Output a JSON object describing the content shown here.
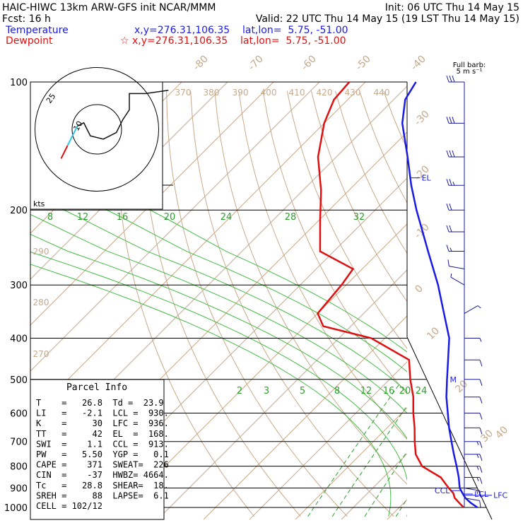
{
  "header": {
    "line1_left": "HAIC-HIWC 13km ARW-GFS init   NCAR/MMM",
    "line1_right": "Init: 06 UTC Thu 14 May 15",
    "line2_left": "Fcst:   16 h",
    "line2_right": "Valid: 22 UTC Thu 14 May 15 (19 LST Thu 14 May 15)",
    "temp_label": "Temperature",
    "temp_loc": "x,y=276.31,106.35    lat,lon=  5.75, -51.00",
    "dew_label": "Dewpoint",
    "dew_loc": "☆ x,y=276.31,106.35    lat,lon=  5.75, -51.00",
    "barb_label_1": "Full barb:",
    "barb_label_2": "5 m s⁻¹"
  },
  "colors": {
    "temperature": "#1a1ae6",
    "dewpoint": "#e01010",
    "isotherm": "#c8a98a",
    "mixing_ratio": "#2ca02c",
    "moist_adiabat": "#44bb44",
    "barb": "#1a1a99",
    "hodo_wind": "#111111",
    "hodo_low": "#33c4e8"
  },
  "chart_data": {
    "type": "skew-t",
    "pressure_ticks": [
      "100",
      "200",
      "300",
      "400",
      "500",
      "600",
      "700",
      "800",
      "900",
      "1000"
    ],
    "isotherm_labels": [
      "-80",
      "-70",
      "-60",
      "-50",
      "-40",
      "-30",
      "-20",
      "-10",
      "0",
      "10",
      "20",
      "30",
      "40"
    ],
    "theta_labels": [
      "370",
      "380",
      "390",
      "400",
      "410",
      "420",
      "430",
      "440",
      "290",
      "280",
      "270"
    ],
    "mixing_ratio_labels": [
      "8",
      "12",
      "16",
      "20",
      "24",
      "28",
      "32",
      "2",
      "3",
      "5",
      "8",
      "12",
      "16",
      "20",
      "24"
    ],
    "temperature": [
      {
        "p": 1000,
        "t": 27.0
      },
      {
        "p": 975,
        "t": 24.5
      },
      {
        "p": 950,
        "t": 22.3
      },
      {
        "p": 925,
        "t": 20.6
      },
      {
        "p": 900,
        "t": 18.9
      },
      {
        "p": 850,
        "t": 16.4
      },
      {
        "p": 800,
        "t": 13.5
      },
      {
        "p": 750,
        "t": 10.3
      },
      {
        "p": 700,
        "t": 7.0
      },
      {
        "p": 650,
        "t": 3.5
      },
      {
        "p": 600,
        "t": 0.0
      },
      {
        "p": 550,
        "t": -3.8
      },
      {
        "p": 500,
        "t": -7.5
      },
      {
        "p": 450,
        "t": -11.5
      },
      {
        "p": 400,
        "t": -16.0
      },
      {
        "p": 350,
        "t": -22.5
      },
      {
        "p": 300,
        "t": -30.0
      },
      {
        "p": 250,
        "t": -39.5
      },
      {
        "p": 200,
        "t": -51.0
      },
      {
        "p": 175,
        "t": -57.5
      },
      {
        "p": 150,
        "t": -64.5
      },
      {
        "p": 125,
        "t": -73.0
      },
      {
        "p": 110,
        "t": -77.5
      },
      {
        "p": 100,
        "t": -79.0
      }
    ],
    "dewpoint": [
      {
        "p": 1000,
        "t": 24.0
      },
      {
        "p": 975,
        "t": 22.0
      },
      {
        "p": 950,
        "t": 20.0
      },
      {
        "p": 925,
        "t": 18.6
      },
      {
        "p": 900,
        "t": 16.5
      },
      {
        "p": 850,
        "t": 12.5
      },
      {
        "p": 800,
        "t": 6.0
      },
      {
        "p": 750,
        "t": 2.0
      },
      {
        "p": 700,
        "t": -1.0
      },
      {
        "p": 650,
        "t": -4.0
      },
      {
        "p": 600,
        "t": -7.5
      },
      {
        "p": 550,
        "t": -11.0
      },
      {
        "p": 500,
        "t": -15.5
      },
      {
        "p": 450,
        "t": -20.0
      },
      {
        "p": 400,
        "t": -33.0
      },
      {
        "p": 375,
        "t": -46.0
      },
      {
        "p": 350,
        "t": -50.0
      },
      {
        "p": 300,
        "t": -51.0
      },
      {
        "p": 275,
        "t": -52.0
      },
      {
        "p": 250,
        "t": -63.0
      },
      {
        "p": 210,
        "t": -70.0
      },
      {
        "p": 180,
        "t": -76.0
      },
      {
        "p": 150,
        "t": -84.0
      },
      {
        "p": 125,
        "t": -90.0
      },
      {
        "p": 110,
        "t": -93.0
      },
      {
        "p": 100,
        "t": -93.5
      }
    ],
    "markers": [
      {
        "label": "EL",
        "p": 168
      },
      {
        "label": "LCL",
        "p": 930
      },
      {
        "label": "LFC",
        "p": 936
      },
      {
        "label": "CCL",
        "p": 913
      },
      {
        "label": "M",
        "p": 500
      }
    ],
    "parcel_info": {
      "title": "Parcel Info",
      "rows": [
        "T    =   26.8  Td =  23.9",
        "LI   =   -2.1  LCL =  930.",
        "K    =     30  LFC =  936.",
        "TT   =     42  EL  =  168.",
        "SWI  =    1.1  CCL =  913.",
        "PW   =   5.50  YGP =   0.1",
        "CAPE =    371  SWEAT=  226",
        "CIN  =    -37  HWBZ= 4664.",
        "Tc   =   28.8  SHEAR=  18.",
        "SREH =     88  LAPSE=  6.1",
        "CELL = 102/12"
      ]
    },
    "hodograph": {
      "units": "kts",
      "ring_labels": [
        "10",
        "25"
      ],
      "points": [
        [
          -11,
          -9
        ],
        [
          -10,
          -7
        ],
        [
          -9,
          -5
        ],
        [
          -8,
          -3
        ],
        [
          -7,
          -1
        ],
        [
          -6,
          1
        ],
        [
          -4,
          2
        ],
        [
          -3,
          0
        ],
        [
          -2,
          -2
        ],
        [
          2,
          -3
        ],
        [
          6,
          -1
        ],
        [
          8,
          3
        ],
        [
          10,
          6
        ],
        [
          10,
          11
        ],
        [
          15,
          11
        ],
        [
          22,
          12
        ]
      ]
    },
    "wind_barbs": [
      {
        "p": 100,
        "speed": 30,
        "dir": 270
      },
      {
        "p": 125,
        "speed": 30,
        "dir": 270
      },
      {
        "p": 150,
        "speed": 30,
        "dir": 270
      },
      {
        "p": 175,
        "speed": 25,
        "dir": 270
      },
      {
        "p": 200,
        "speed": 20,
        "dir": 270
      },
      {
        "p": 225,
        "speed": 20,
        "dir": 270
      },
      {
        "p": 250,
        "speed": 15,
        "dir": 270
      },
      {
        "p": 275,
        "speed": 10,
        "dir": 280
      },
      {
        "p": 300,
        "speed": 5,
        "dir": 300
      },
      {
        "p": 350,
        "speed": 5,
        "dir": 60
      },
      {
        "p": 400,
        "speed": 5,
        "dir": 90
      },
      {
        "p": 450,
        "speed": 10,
        "dir": 90
      },
      {
        "p": 500,
        "speed": 10,
        "dir": 90
      },
      {
        "p": 550,
        "speed": 10,
        "dir": 90
      },
      {
        "p": 600,
        "speed": 10,
        "dir": 90
      },
      {
        "p": 650,
        "speed": 10,
        "dir": 90
      },
      {
        "p": 700,
        "speed": 15,
        "dir": 90
      },
      {
        "p": 750,
        "speed": 15,
        "dir": 90
      },
      {
        "p": 800,
        "speed": 15,
        "dir": 90
      },
      {
        "p": 850,
        "speed": 15,
        "dir": 90
      },
      {
        "p": 900,
        "speed": 15,
        "dir": 100
      },
      {
        "p": 950,
        "speed": 10,
        "dir": 100
      }
    ]
  }
}
